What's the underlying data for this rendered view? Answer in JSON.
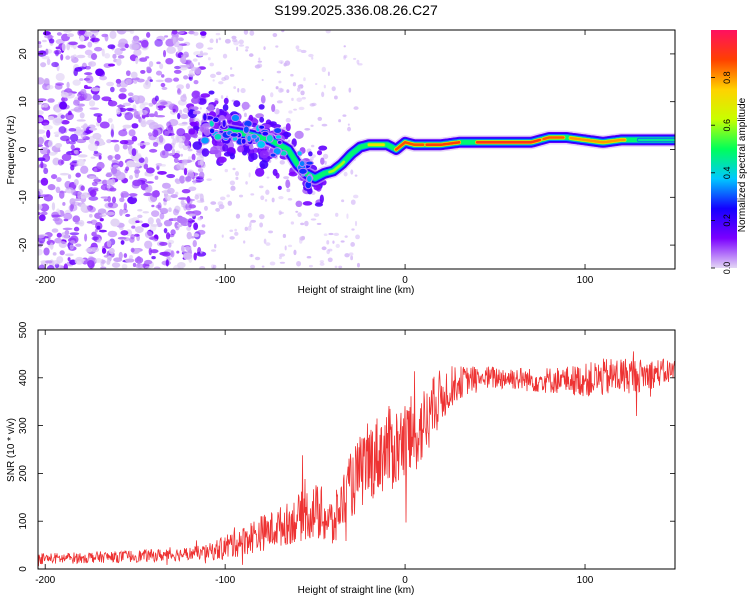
{
  "figure_title": "S199.2025.336.08.26.C27",
  "chart_data": [
    {
      "type": "heatmap",
      "title": "S199.2025.336.08.26.C27",
      "xlabel": "Height of straight line (km)",
      "ylabel": "Frequency (Hz)",
      "xlim": [
        -204,
        150
      ],
      "ylim": [
        -25,
        25
      ],
      "x_ticks": [
        -200,
        -100,
        0,
        100
      ],
      "x_tick_labels": [
        "-200",
        "-100",
        "0",
        "100"
      ],
      "y_ticks": [
        -20,
        -10,
        0,
        10,
        20
      ],
      "y_tick_labels": [
        "-20",
        "-10",
        "0",
        "10",
        "20"
      ],
      "ridge_x": [
        -120,
        -100,
        -85,
        -75,
        -65,
        -60,
        -55,
        -50,
        -45,
        -40,
        -35,
        -30,
        -25,
        -20,
        -15,
        -10,
        -5,
        0,
        5,
        10,
        15,
        20,
        30,
        40,
        50,
        60,
        70,
        80,
        90,
        100,
        110,
        120,
        130,
        140,
        150
      ],
      "ridge_frequency_hz": [
        6,
        4,
        3,
        2,
        0,
        -3,
        -5,
        -6,
        -5,
        -4.5,
        -3,
        -1,
        0.5,
        1,
        1,
        1,
        0,
        1.5,
        1,
        1,
        1,
        1,
        1.5,
        1.5,
        1.5,
        1.5,
        1.5,
        2.5,
        2.5,
        2,
        1.5,
        2,
        2,
        2,
        2
      ],
      "colorbar": {
        "label": "Normalized spectral amplitude",
        "range": [
          0,
          1
        ],
        "ticks": [
          0.0,
          0.2,
          0.4,
          0.6,
          0.8
        ],
        "tick_labels": [
          "0.0",
          "0.2",
          "0.4",
          "0.6",
          "0.8"
        ],
        "colormap": [
          "#e4d8f5",
          "#7b00ff",
          "#1400ff",
          "#00c8ff",
          "#00ff5a",
          "#c8ff00",
          "#ffd200",
          "#ff4000",
          "#ff1060"
        ]
      }
    },
    {
      "type": "line",
      "xlabel": "Height of straight line (km)",
      "ylabel": "SNR (10 * v/v)",
      "xlim": [
        -204,
        150
      ],
      "ylim": [
        0,
        500
      ],
      "x_ticks": [
        -200,
        -100,
        0,
        100
      ],
      "x_tick_labels": [
        "-200",
        "-100",
        "0",
        "100"
      ],
      "y_ticks": [
        0,
        100,
        200,
        300,
        400,
        500
      ],
      "y_tick_labels": [
        "0",
        "100",
        "200",
        "300",
        "400",
        "500"
      ],
      "series_color": "#ee3333",
      "series": [
        {
          "name": "SNR",
          "x": [
            -204,
            -190,
            -180,
            -170,
            -160,
            -150,
            -140,
            -130,
            -120,
            -110,
            -100,
            -95,
            -90,
            -85,
            -80,
            -75,
            -70,
            -65,
            -60,
            -55,
            -50,
            -45,
            -40,
            -35,
            -30,
            -25,
            -20,
            -15,
            -10,
            -5,
            0,
            5,
            10,
            15,
            20,
            25,
            30,
            35,
            40,
            45,
            50,
            60,
            70,
            80,
            90,
            100,
            110,
            120,
            130,
            140,
            150
          ],
          "y": [
            22,
            22,
            24,
            25,
            25,
            27,
            28,
            30,
            32,
            35,
            45,
            55,
            62,
            68,
            75,
            80,
            88,
            95,
            105,
            115,
            120,
            110,
            90,
            140,
            175,
            200,
            225,
            240,
            250,
            255,
            265,
            280,
            300,
            330,
            360,
            380,
            390,
            395,
            400,
            400,
            400,
            400,
            395,
            395,
            395,
            395,
            400,
            405,
            405,
            410,
            415
          ],
          "noise_amplitude": [
            12,
            12,
            12,
            12,
            12,
            13,
            13,
            14,
            14,
            16,
            28,
            32,
            34,
            36,
            38,
            40,
            42,
            45,
            50,
            55,
            60,
            60,
            55,
            60,
            70,
            80,
            85,
            85,
            90,
            90,
            90,
            85,
            80,
            70,
            60,
            45,
            35,
            30,
            25,
            25,
            25,
            25,
            25,
            28,
            30,
            35,
            40,
            40,
            35,
            30,
            25
          ]
        }
      ]
    }
  ]
}
